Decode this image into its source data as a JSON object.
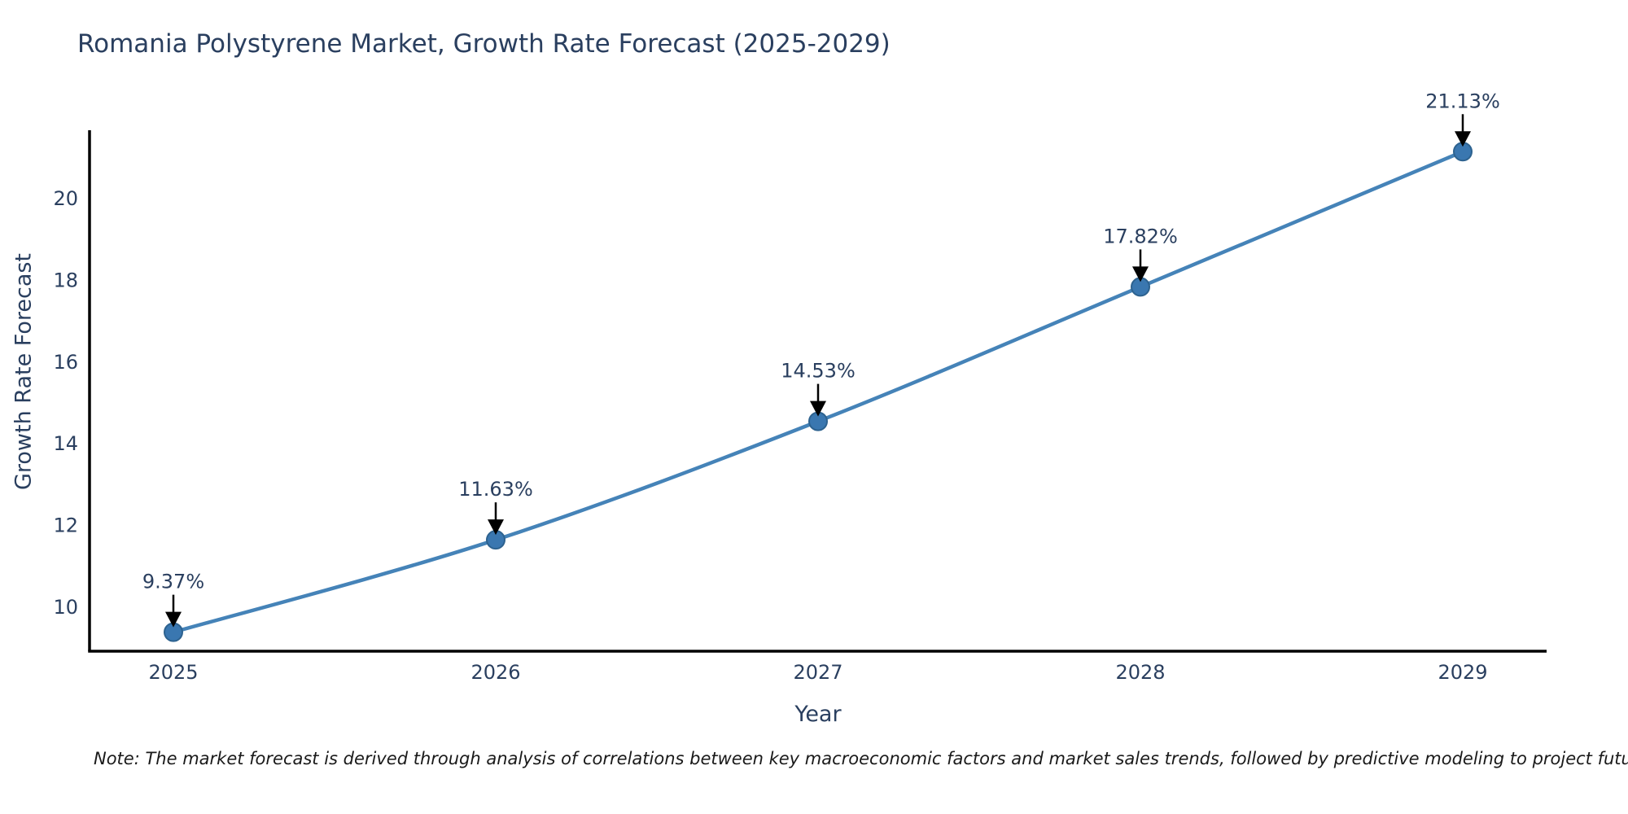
{
  "chart_data": {
    "type": "line",
    "title": "Romania Polystyrene Market, Growth Rate Forecast (2025-2029)",
    "xlabel": "Year",
    "ylabel": "Growth Rate Forecast",
    "categories": [
      "2025",
      "2026",
      "2027",
      "2028",
      "2029"
    ],
    "series": [
      {
        "name": "Growth Rate Forecast",
        "values": [
          9.37,
          11.63,
          14.53,
          17.82,
          21.13
        ],
        "point_labels": [
          "9.37%",
          "11.63%",
          "14.53%",
          "17.82%",
          "21.13%"
        ]
      }
    ],
    "y_ticks": [
      10,
      12,
      14,
      16,
      18,
      20
    ],
    "ylim": [
      8.9,
      21.65
    ],
    "grid": false,
    "legend_position": "none",
    "line_shape": "spline",
    "colors": {
      "line": "#4583b8",
      "marker_fill": "#3a77b0",
      "marker_edge": "#2d628f",
      "axis": "#000000",
      "text": "#2a3f5f",
      "annotation_arrow": "#000000"
    }
  },
  "footnote": "Note: The market forecast is derived through analysis of correlations between key macroeconomic factors and market sales trends, followed by predictive modeling to project future sales"
}
